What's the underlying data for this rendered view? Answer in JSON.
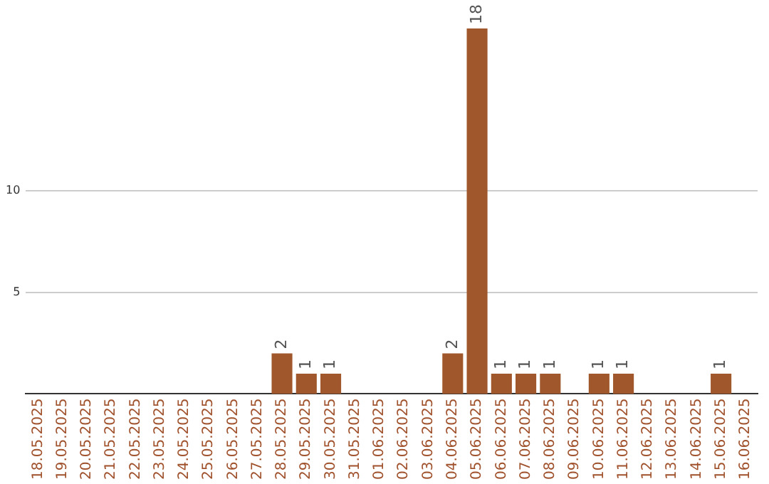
{
  "chart_data": {
    "type": "bar",
    "categories": [
      "18.05.2025",
      "19.05.2025",
      "20.05.2025",
      "21.05.2025",
      "22.05.2025",
      "23.05.2025",
      "24.05.2025",
      "25.05.2025",
      "26.05.2025",
      "27.05.2025",
      "28.05.2025",
      "29.05.2025",
      "30.05.2025",
      "31.05.2025",
      "01.06.2025",
      "02.06.2025",
      "03.06.2025",
      "04.06.2025",
      "05.06.2025",
      "06.06.2025",
      "07.06.2025",
      "08.06.2025",
      "09.06.2025",
      "10.06.2025",
      "11.06.2025",
      "12.06.2025",
      "13.06.2025",
      "14.06.2025",
      "15.06.2025",
      "16.06.2025"
    ],
    "values": [
      0,
      0,
      0,
      0,
      0,
      0,
      0,
      0,
      0,
      0,
      2,
      1,
      1,
      0,
      0,
      0,
      0,
      2,
      18,
      1,
      1,
      1,
      0,
      1,
      1,
      0,
      0,
      0,
      1,
      0
    ],
    "color": "#a0572b",
    "value_labels": [
      null,
      null,
      null,
      null,
      null,
      null,
      null,
      null,
      null,
      null,
      "2",
      "1",
      "1",
      null,
      null,
      null,
      null,
      "2",
      "18",
      "1",
      "1",
      "1",
      null,
      "1",
      "1",
      null,
      null,
      null,
      "1",
      null
    ],
    "ylim": [
      0,
      18
    ],
    "yticks": [
      5,
      10
    ],
    "grid": "y",
    "legend": false
  }
}
